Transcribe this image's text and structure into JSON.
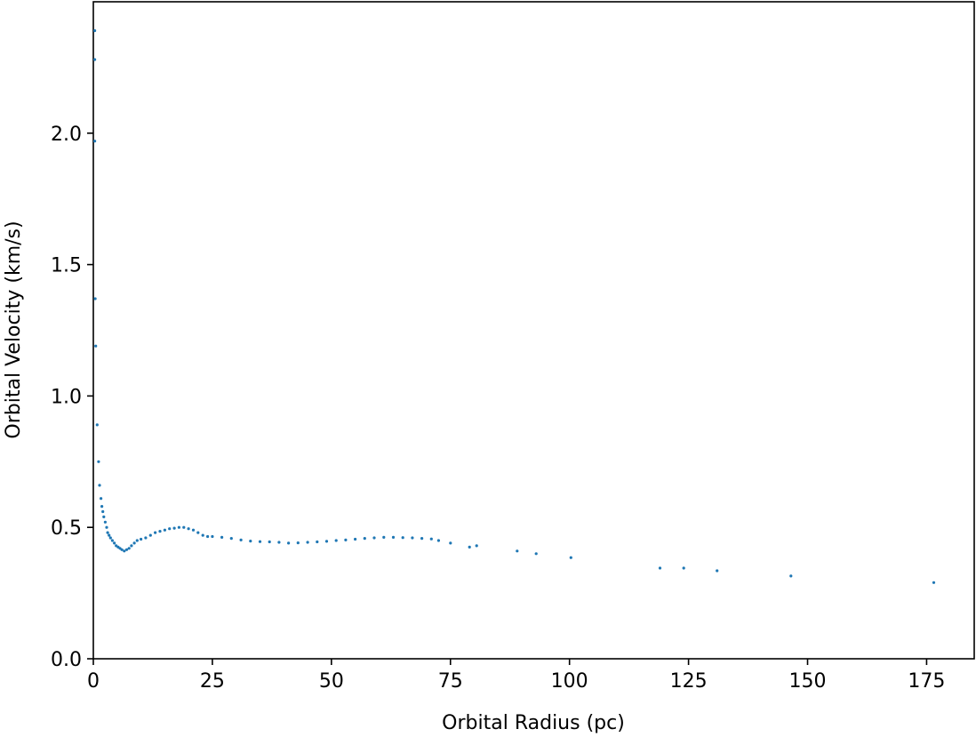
{
  "chart_data": {
    "type": "scatter",
    "title": "",
    "xlabel": "Orbital Radius (pc)",
    "ylabel": "Orbital Velocity (km/s)",
    "xlim": [
      0,
      185
    ],
    "ylim": [
      0,
      2.5
    ],
    "xticks": [
      0,
      25,
      50,
      75,
      100,
      125,
      150,
      175
    ],
    "yticks": [
      0.0,
      0.5,
      1.0,
      1.5,
      2.0
    ],
    "xtick_labels": [
      "0",
      "25",
      "50",
      "75",
      "100",
      "125",
      "150",
      "175"
    ],
    "ytick_labels": [
      "0.0",
      "0.5",
      "1.0",
      "1.5",
      "2.0"
    ],
    "grid": false,
    "legend": "none",
    "marker_color": "#1f77b4",
    "series": [
      {
        "points": [
          [
            0.3,
            2.39
          ],
          [
            0.3,
            2.28
          ],
          [
            0.3,
            1.97
          ],
          [
            0.4,
            1.37
          ],
          [
            0.5,
            1.19
          ],
          [
            0.8,
            0.89
          ],
          [
            1.1,
            0.75
          ],
          [
            1.3,
            0.66
          ],
          [
            1.6,
            0.61
          ],
          [
            1.8,
            0.58
          ],
          [
            2.0,
            0.56
          ],
          [
            2.2,
            0.54
          ],
          [
            2.5,
            0.52
          ],
          [
            2.8,
            0.5
          ],
          [
            3.0,
            0.48
          ],
          [
            3.3,
            0.47
          ],
          [
            3.6,
            0.46
          ],
          [
            4.0,
            0.45
          ],
          [
            4.4,
            0.44
          ],
          [
            4.8,
            0.43
          ],
          [
            5.2,
            0.425
          ],
          [
            5.6,
            0.42
          ],
          [
            6.0,
            0.415
          ],
          [
            6.5,
            0.41
          ],
          [
            7.0,
            0.415
          ],
          [
            7.5,
            0.42
          ],
          [
            8.0,
            0.43
          ],
          [
            8.6,
            0.44
          ],
          [
            9.2,
            0.45
          ],
          [
            10,
            0.455
          ],
          [
            11,
            0.46
          ],
          [
            12,
            0.47
          ],
          [
            13,
            0.48
          ],
          [
            14,
            0.485
          ],
          [
            15,
            0.49
          ],
          [
            16,
            0.495
          ],
          [
            17,
            0.497
          ],
          [
            18,
            0.5
          ],
          [
            19,
            0.5
          ],
          [
            20,
            0.495
          ],
          [
            21,
            0.49
          ],
          [
            22,
            0.48
          ],
          [
            23,
            0.47
          ],
          [
            24,
            0.465
          ],
          [
            25,
            0.465
          ],
          [
            27,
            0.462
          ],
          [
            29,
            0.458
          ],
          [
            31,
            0.452
          ],
          [
            33,
            0.448
          ],
          [
            35,
            0.446
          ],
          [
            37,
            0.445
          ],
          [
            39,
            0.443
          ],
          [
            41,
            0.44
          ],
          [
            43,
            0.441
          ],
          [
            45,
            0.443
          ],
          [
            47,
            0.445
          ],
          [
            49,
            0.447
          ],
          [
            51,
            0.45
          ],
          [
            53,
            0.452
          ],
          [
            55,
            0.455
          ],
          [
            57,
            0.458
          ],
          [
            59,
            0.46
          ],
          [
            61,
            0.462
          ],
          [
            63,
            0.462
          ],
          [
            65,
            0.461
          ],
          [
            67,
            0.46
          ],
          [
            69,
            0.458
          ],
          [
            71,
            0.456
          ],
          [
            72.5,
            0.45
          ],
          [
            75,
            0.44
          ],
          [
            79,
            0.425
          ],
          [
            80.5,
            0.43
          ],
          [
            89,
            0.41
          ],
          [
            93,
            0.4
          ],
          [
            100.3,
            0.385
          ],
          [
            119,
            0.345
          ],
          [
            124,
            0.345
          ],
          [
            131,
            0.335
          ],
          [
            146.5,
            0.315
          ],
          [
            176.5,
            0.29
          ]
        ]
      }
    ]
  }
}
